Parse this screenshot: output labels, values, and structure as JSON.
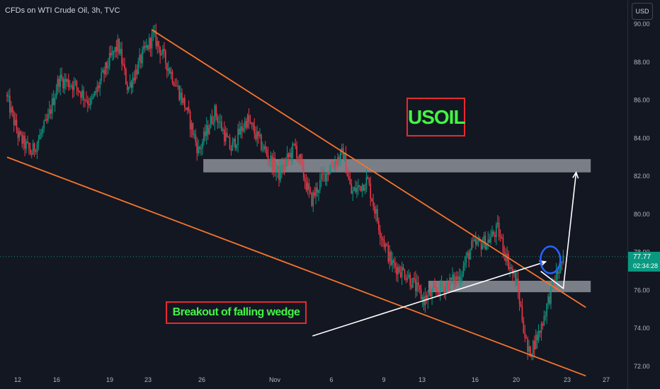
{
  "header": {
    "symbol_label": "CFDs on WTI Crude Oil, 3h, TVC",
    "currency_button": "USD"
  },
  "price_tag": {
    "price": "77.77",
    "countdown": "02:34:28"
  },
  "annotations": {
    "title_box": "USOIL",
    "breakout_box": "Breakout of falling wedge"
  },
  "colors": {
    "background": "#131722",
    "up_candle": "#089981",
    "down_candle": "#f23645",
    "trendline": "#f7742c",
    "zone": "#b2b5be",
    "arrow": "#ffffff",
    "circle": "#2962ff",
    "label_text": "#43f543",
    "label_border": "#e8292b"
  },
  "chart_data": {
    "type": "candlestick",
    "title": "CFDs on WTI Crude Oil, 3h, TVC",
    "y_axis": {
      "side": "right",
      "ticks": [
        "90.00",
        "88.00",
        "86.00",
        "84.00",
        "82.00",
        "80.00",
        "78.00",
        "76.00",
        "74.00",
        "72.00"
      ],
      "range": [
        71.6,
        90.3
      ]
    },
    "x_axis": {
      "ticks": [
        "12",
        "16",
        "19",
        "23",
        "26",
        "Nov",
        "6",
        "9",
        "13",
        "16",
        "20",
        "23",
        "27"
      ]
    },
    "grid": false,
    "path_anchors": [
      {
        "x": 0.0,
        "y": 86.3
      },
      {
        "x": 0.8,
        "y": 84.1
      },
      {
        "x": 1.6,
        "y": 83.2
      },
      {
        "x": 2.6,
        "y": 84.9
      },
      {
        "x": 3.3,
        "y": 87.1
      },
      {
        "x": 4.3,
        "y": 86.8
      },
      {
        "x": 5.3,
        "y": 85.8
      },
      {
        "x": 6.4,
        "y": 88.0
      },
      {
        "x": 7.0,
        "y": 88.9
      },
      {
        "x": 7.6,
        "y": 86.6
      },
      {
        "x": 8.6,
        "y": 88.5
      },
      {
        "x": 9.2,
        "y": 89.4
      },
      {
        "x": 10.3,
        "y": 87.4
      },
      {
        "x": 11.2,
        "y": 85.6
      },
      {
        "x": 12.0,
        "y": 83.3
      },
      {
        "x": 13.0,
        "y": 85.4
      },
      {
        "x": 14.0,
        "y": 83.4
      },
      {
        "x": 15.0,
        "y": 85.0
      },
      {
        "x": 16.0,
        "y": 83.5
      },
      {
        "x": 17.0,
        "y": 82.1
      },
      {
        "x": 18.0,
        "y": 83.6
      },
      {
        "x": 19.0,
        "y": 80.7
      },
      {
        "x": 19.7,
        "y": 81.9
      },
      {
        "x": 20.5,
        "y": 82.8
      },
      {
        "x": 21.0,
        "y": 83.2
      },
      {
        "x": 21.5,
        "y": 81.1
      },
      {
        "x": 22.5,
        "y": 81.8
      },
      {
        "x": 23.3,
        "y": 79.1
      },
      {
        "x": 24.0,
        "y": 77.4
      },
      {
        "x": 25.0,
        "y": 76.8
      },
      {
        "x": 26.0,
        "y": 75.5
      },
      {
        "x": 27.2,
        "y": 76.2
      },
      {
        "x": 28.2,
        "y": 76.7
      },
      {
        "x": 29.0,
        "y": 78.3
      },
      {
        "x": 30.0,
        "y": 78.6
      },
      {
        "x": 30.6,
        "y": 79.2
      },
      {
        "x": 31.3,
        "y": 77.4
      },
      {
        "x": 31.8,
        "y": 76.3
      },
      {
        "x": 32.5,
        "y": 72.6
      },
      {
        "x": 33.2,
        "y": 73.8
      },
      {
        "x": 34.0,
        "y": 76.2
      },
      {
        "x": 34.6,
        "y": 77.5
      }
    ],
    "overlays": {
      "falling_wedge_upper": [
        {
          "x": 9.0,
          "y": 89.7
        },
        {
          "x": 36.0,
          "y": 75.1
        }
      ],
      "falling_wedge_lower": [
        {
          "x": 0.0,
          "y": 83.0
        },
        {
          "x": 36.0,
          "y": 71.5
        }
      ],
      "resistance_zone": {
        "x": [
          13.0,
          36.0
        ],
        "y": [
          82.2,
          82.9
        ]
      },
      "support_zone": {
        "x": [
          27.0,
          36.0
        ],
        "y": [
          75.9,
          76.5
        ]
      },
      "breakout_arrow": [
        {
          "x": 19.0,
          "y": 73.6
        },
        {
          "x": 33.5,
          "y": 77.5
        }
      ],
      "projection_arrow": [
        {
          "x": 33.2,
          "y": 77.0
        },
        {
          "x": 34.6,
          "y": 76.1
        },
        {
          "x": 35.4,
          "y": 82.2
        }
      ],
      "marker_circle": {
        "x": 33.8,
        "y": 77.6
      },
      "current_price": 77.77
    }
  }
}
